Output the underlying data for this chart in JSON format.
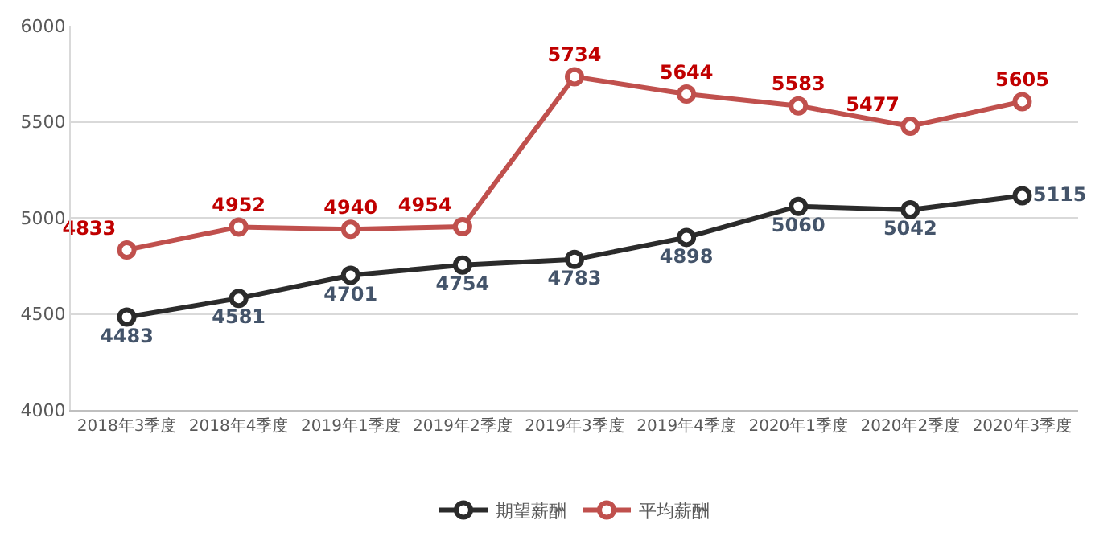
{
  "chart_data": {
    "type": "line",
    "categories": [
      "2018年3季度",
      "2018年4季度",
      "2019年1季度",
      "2019年2季度",
      "2019年3季度",
      "2019年4季度",
      "2020年1季度",
      "2020年2季度",
      "2020年3季度"
    ],
    "series": [
      {
        "name": "期望薪酬",
        "color": "#2b2b2b",
        "values": [
          4483,
          4581,
          4701,
          4754,
          4783,
          4898,
          5060,
          5042,
          5115
        ]
      },
      {
        "name": "平均薪酬",
        "color": "#c0504d",
        "values": [
          4833,
          4952,
          4940,
          4954,
          5734,
          5644,
          5583,
          5477,
          5605
        ]
      }
    ],
    "ylim": [
      4000,
      6000
    ],
    "yticks": [
      4000,
      4500,
      5000,
      5500,
      6000
    ],
    "grid": "y",
    "legend": "bottom",
    "marker": "circle",
    "line_style": "solid",
    "data_labels": true
  }
}
